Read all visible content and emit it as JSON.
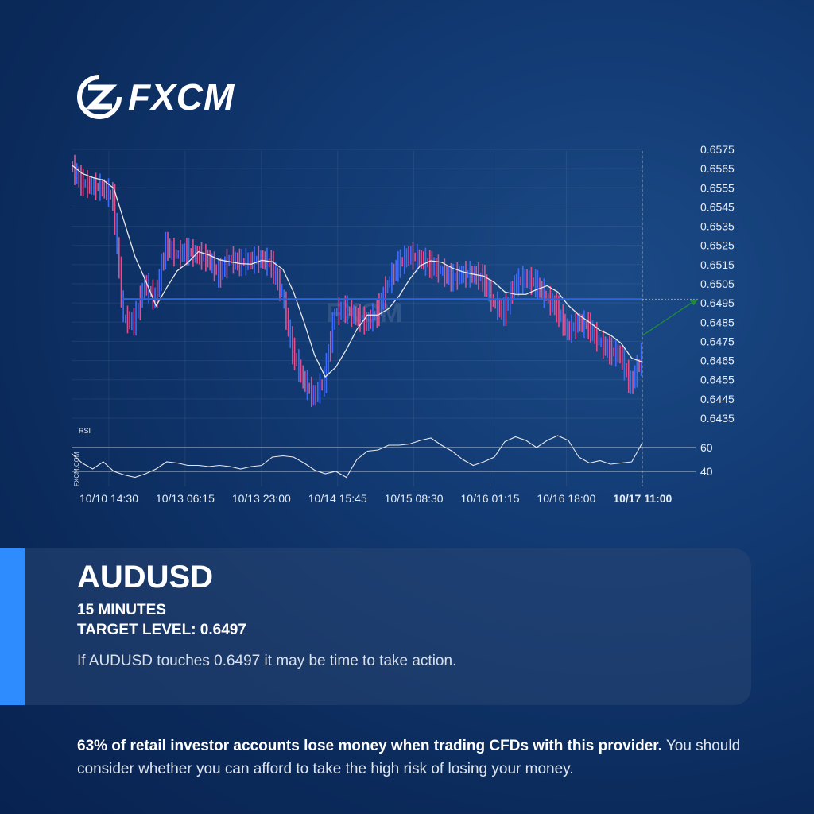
{
  "brand": {
    "name": "FXCM"
  },
  "card": {
    "symbol": "AUDUSD",
    "timeframe": "15 MINUTES",
    "target_label": "TARGET LEVEL: 0.6497",
    "message": "If AUDUSD touches 0.6497 it may be time to take action."
  },
  "disclaimer": {
    "bold": "63% of retail investor accounts lose money when trading CFDs with this provider.",
    "rest": " You should consider whether you can afford to take the high risk of losing your money."
  },
  "colors": {
    "up": "#3d6bff",
    "down": "#e0508f",
    "ma": "#e8e8e8",
    "target": "#2a63e0",
    "arrow": "#1f8a3a",
    "accent": "#2f8cff"
  },
  "chart_data": {
    "type": "line",
    "title": "",
    "watermark": "FXCM",
    "x_tick_labels": [
      "10/10 14:30",
      "10/13 06:15",
      "10/13 23:00",
      "10/14 15:45",
      "10/15 08:30",
      "10/16 01:15",
      "10/16 18:00",
      "10/17 11:00"
    ],
    "y_ticks": [
      "0.6575",
      "0.6565",
      "0.6555",
      "0.6545",
      "0.6535",
      "0.6525",
      "0.6515",
      "0.6505",
      "0.6495",
      "0.6485",
      "0.6475",
      "0.6465",
      "0.6455",
      "0.6445",
      "0.6435"
    ],
    "ylim": [
      0.643,
      0.6575
    ],
    "target_level": 0.6497,
    "grid": true,
    "price": [
      0.6567,
      0.6558,
      0.6556,
      0.6555,
      0.655,
      0.6487,
      0.6485,
      0.6505,
      0.6497,
      0.6525,
      0.652,
      0.6522,
      0.652,
      0.6518,
      0.651,
      0.6518,
      0.6516,
      0.6517,
      0.6518,
      0.6515,
      0.65,
      0.647,
      0.6455,
      0.6446,
      0.6455,
      0.649,
      0.6492,
      0.6488,
      0.6485,
      0.649,
      0.6505,
      0.6515,
      0.652,
      0.6518,
      0.6515,
      0.6512,
      0.6508,
      0.651,
      0.651,
      0.6508,
      0.6495,
      0.649,
      0.6505,
      0.6508,
      0.6505,
      0.6498,
      0.6492,
      0.648,
      0.6485,
      0.6483,
      0.6475,
      0.647,
      0.6468,
      0.6452,
      0.6467
    ],
    "rsi": {
      "label": "RSI",
      "side_label": "FXCM.COM",
      "levels": [
        "60",
        "40"
      ],
      "values": [
        55,
        47,
        42,
        48,
        40,
        37,
        35,
        38,
        42,
        48,
        47,
        45,
        45,
        44,
        45,
        44,
        42,
        44,
        45,
        52,
        53,
        52,
        47,
        41,
        38,
        40,
        35,
        50,
        57,
        58,
        62,
        62,
        63,
        66,
        68,
        62,
        57,
        50,
        45,
        48,
        52,
        65,
        69,
        66,
        60,
        66,
        70,
        66,
        52,
        47,
        49,
        46,
        47,
        48,
        64
      ]
    }
  }
}
